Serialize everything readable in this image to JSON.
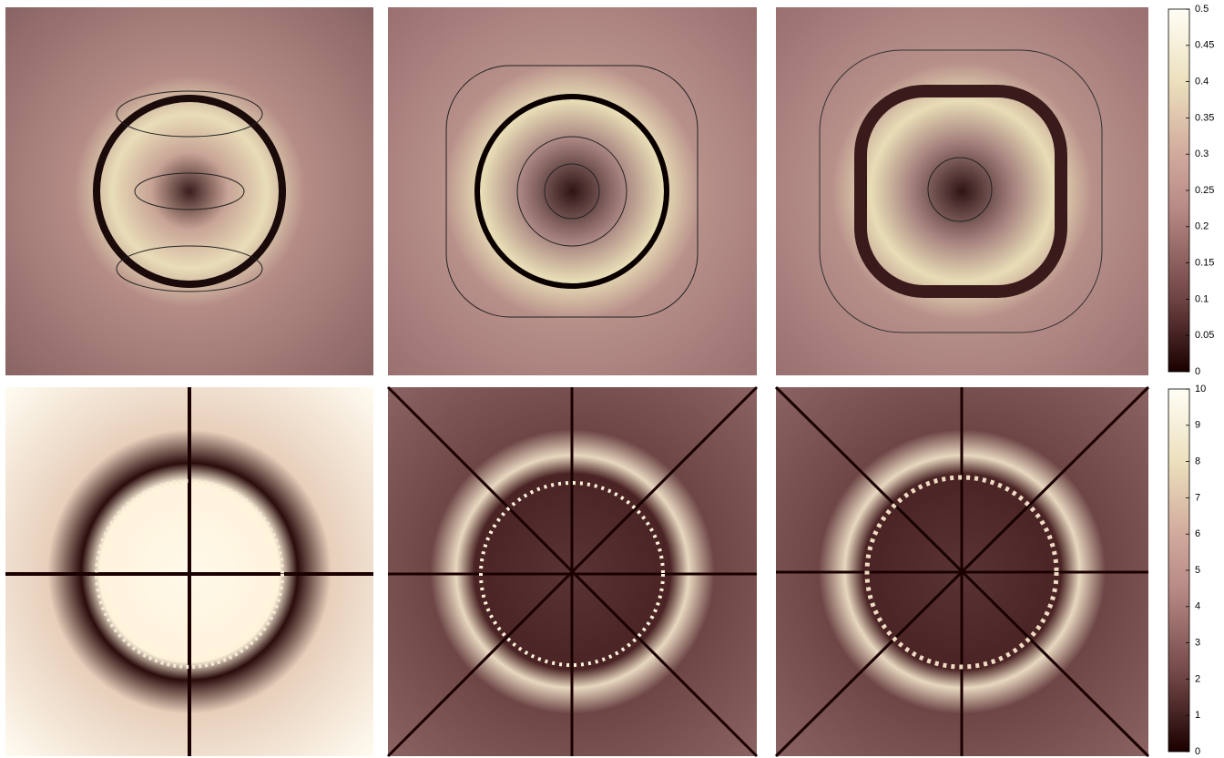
{
  "colorbars": [
    {
      "lim": [
        0,
        0.5
      ],
      "ticks": [
        0,
        0.05,
        0.1,
        0.15,
        0.2,
        0.25,
        0.3,
        0.35,
        0.4,
        0.45,
        0.5
      ]
    },
    {
      "lim": [
        0,
        10
      ],
      "ticks": [
        0,
        1,
        2,
        3,
        4,
        5,
        6,
        7,
        8,
        9,
        10
      ]
    }
  ]
}
